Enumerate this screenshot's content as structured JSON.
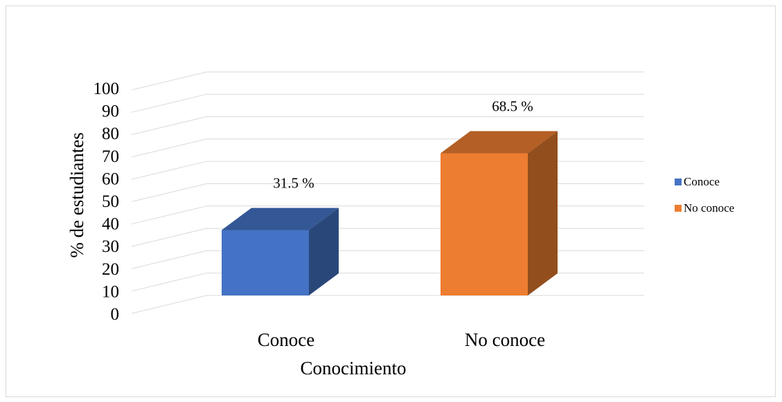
{
  "chart_data": {
    "type": "bar",
    "style": "3d-column",
    "categories": [
      "Conoce",
      "No conoce"
    ],
    "values": [
      31.5,
      68.5
    ],
    "data_labels": [
      "31.5 %",
      "68.5 %"
    ],
    "colors": [
      "#4472C4",
      "#ED7D31"
    ],
    "xlabel": "Conocimiento",
    "ylabel": "% de  estudiantes",
    "ylim": [
      0,
      100
    ],
    "yticks": [
      0,
      10,
      20,
      30,
      40,
      50,
      60,
      70,
      80,
      90,
      100
    ],
    "grid": true,
    "legend": {
      "position": "right",
      "entries": [
        "Conoce",
        "No conoce"
      ]
    }
  }
}
